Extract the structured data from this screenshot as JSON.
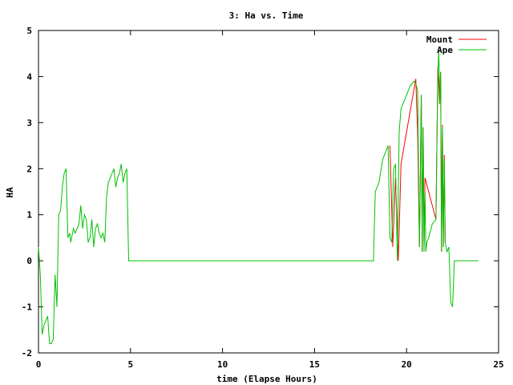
{
  "chart_data": {
    "type": "line",
    "title": "3: Ha vs. Time",
    "xlabel": "time (Elapse Hours)",
    "ylabel": "HA",
    "xlim": [
      0,
      25
    ],
    "ylim": [
      -2,
      5
    ],
    "xticks": [
      0,
      5,
      10,
      15,
      20,
      25
    ],
    "yticks": [
      -2,
      -1,
      0,
      1,
      2,
      3,
      4,
      5
    ],
    "grid": false,
    "legend": "top-right",
    "series": [
      {
        "name": "Mount",
        "color": "#ff0000",
        "x": [
          19.1,
          19.25,
          19.4,
          19.55,
          19.7,
          20.5,
          20.6,
          20.7,
          20.8,
          20.85,
          20.9,
          20.95,
          21.0,
          21.6,
          21.7,
          21.8,
          21.85,
          21.9,
          21.95,
          22.0,
          22.05,
          22.1
        ],
        "y": [
          2.5,
          0.3,
          1.8,
          0.0,
          2.1,
          3.95,
          2.8,
          0.3,
          3.6,
          0.2,
          2.9,
          0.3,
          1.8,
          0.9,
          4.2,
          3.4,
          4.1,
          0.2,
          2.95,
          0.3,
          2.3,
          0.4
        ]
      },
      {
        "name": "Ape",
        "color": "#00c000",
        "x": [
          0.0,
          0.1,
          0.2,
          0.3,
          0.4,
          0.5,
          0.6,
          0.7,
          0.8,
          0.9,
          1.0,
          1.05,
          1.1,
          1.2,
          1.3,
          1.4,
          1.5,
          1.6,
          1.7,
          1.75,
          1.8,
          1.85,
          1.9,
          2.0,
          2.1,
          2.2,
          2.3,
          2.4,
          2.5,
          2.6,
          2.7,
          2.8,
          2.9,
          3.0,
          3.1,
          3.2,
          3.3,
          3.4,
          3.5,
          3.6,
          3.7,
          3.8,
          3.9,
          4.0,
          4.1,
          4.2,
          4.3,
          4.4,
          4.5,
          4.6,
          4.7,
          4.8,
          4.9,
          5.0,
          5.1,
          5.2,
          5.3,
          5.4,
          5.5,
          5.6,
          5.7,
          5.75,
          5.8,
          18.2,
          18.3,
          18.5,
          18.7,
          18.9,
          19.0,
          19.1,
          19.2,
          19.3,
          19.4,
          19.5,
          19.6,
          19.7,
          19.8,
          20.0,
          20.2,
          20.4,
          20.5,
          20.6,
          20.7,
          20.8,
          20.85,
          20.9,
          20.95,
          21.0,
          21.05,
          21.1,
          21.2,
          21.4,
          21.6,
          21.7,
          21.75,
          21.8,
          21.85,
          21.9,
          21.95,
          22.0,
          22.05,
          22.1,
          22.2,
          22.3,
          22.4,
          22.5,
          22.6,
          22.7,
          23.0,
          23.5,
          23.9
        ],
        "y": [
          0.3,
          -0.3,
          -1.6,
          -1.4,
          -1.3,
          -1.2,
          -1.8,
          -1.8,
          -1.7,
          -0.3,
          -1.0,
          0.0,
          1.0,
          1.1,
          1.6,
          1.9,
          2.0,
          0.5,
          0.6,
          0.4,
          0.5,
          0.6,
          0.7,
          0.6,
          0.7,
          0.8,
          1.2,
          0.7,
          1.0,
          0.9,
          0.4,
          0.5,
          0.9,
          0.3,
          0.7,
          0.8,
          0.6,
          0.5,
          0.6,
          0.4,
          1.4,
          1.7,
          1.8,
          1.9,
          2.0,
          1.6,
          1.8,
          1.9,
          2.1,
          1.7,
          1.9,
          2.0,
          0.0,
          0.0,
          0.0,
          0.0,
          0.0,
          0.0,
          0.0,
          0.0,
          0.0,
          0.0,
          0.0,
          0.0,
          1.5,
          1.7,
          2.2,
          2.4,
          2.5,
          0.5,
          0.4,
          2.0,
          2.1,
          0.0,
          2.8,
          3.3,
          3.4,
          3.6,
          3.8,
          3.9,
          3.85,
          3.7,
          0.3,
          3.6,
          0.2,
          2.9,
          0.2,
          1.5,
          0.2,
          0.4,
          0.5,
          0.8,
          0.9,
          4.0,
          4.6,
          3.4,
          4.1,
          0.2,
          2.9,
          0.3,
          2.2,
          0.4,
          0.2,
          0.3,
          -0.9,
          -1.0,
          0.0,
          0.0,
          0.0,
          0.0,
          0.0
        ]
      }
    ]
  }
}
